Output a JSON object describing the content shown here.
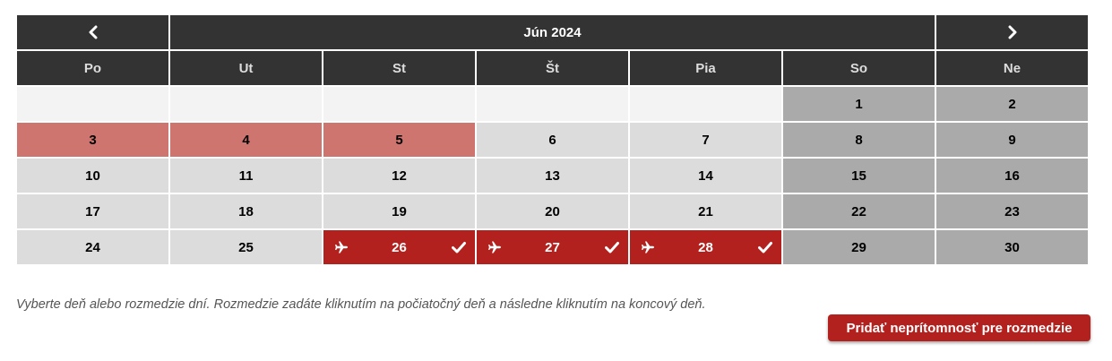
{
  "calendar": {
    "month_title": "Jún 2024",
    "prev_icon": "chevron-left-icon",
    "next_icon": "chevron-right-icon",
    "weekdays": [
      "Po",
      "Ut",
      "St",
      "Št",
      "Pia",
      "So",
      "Ne"
    ],
    "weeks": [
      [
        {
          "day": "",
          "state": "empty"
        },
        {
          "day": "",
          "state": "empty"
        },
        {
          "day": "",
          "state": "empty"
        },
        {
          "day": "",
          "state": "empty"
        },
        {
          "day": "",
          "state": "empty"
        },
        {
          "day": "1",
          "state": "weekend"
        },
        {
          "day": "2",
          "state": "weekend"
        }
      ],
      [
        {
          "day": "3",
          "state": "pending"
        },
        {
          "day": "4",
          "state": "pending"
        },
        {
          "day": "5",
          "state": "pending"
        },
        {
          "day": "6",
          "state": "workday"
        },
        {
          "day": "7",
          "state": "workday"
        },
        {
          "day": "8",
          "state": "weekend"
        },
        {
          "day": "9",
          "state": "weekend"
        }
      ],
      [
        {
          "day": "10",
          "state": "workday"
        },
        {
          "day": "11",
          "state": "workday"
        },
        {
          "day": "12",
          "state": "workday"
        },
        {
          "day": "13",
          "state": "workday"
        },
        {
          "day": "14",
          "state": "workday"
        },
        {
          "day": "15",
          "state": "weekend"
        },
        {
          "day": "16",
          "state": "weekend"
        }
      ],
      [
        {
          "day": "17",
          "state": "workday"
        },
        {
          "day": "18",
          "state": "workday"
        },
        {
          "day": "19",
          "state": "workday"
        },
        {
          "day": "20",
          "state": "workday"
        },
        {
          "day": "21",
          "state": "workday"
        },
        {
          "day": "22",
          "state": "weekend"
        },
        {
          "day": "23",
          "state": "weekend"
        }
      ],
      [
        {
          "day": "24",
          "state": "workday"
        },
        {
          "day": "25",
          "state": "workday"
        },
        {
          "day": "26",
          "state": "trip",
          "icons": [
            "plane-icon",
            "check-icon"
          ]
        },
        {
          "day": "27",
          "state": "trip",
          "icons": [
            "plane-icon",
            "check-icon"
          ]
        },
        {
          "day": "28",
          "state": "trip",
          "icons": [
            "plane-icon",
            "check-icon"
          ]
        },
        {
          "day": "29",
          "state": "weekend"
        },
        {
          "day": "30",
          "state": "weekend"
        }
      ]
    ]
  },
  "hint_text": "Vyberte deň alebo rozmedzie dní. Rozmedzie zadáte kliknutím na počiatočný deň a následne kliknutím na koncový deň.",
  "add_button_label": "Pridať neprítomnosť pre rozmedzie",
  "colors": {
    "header_bg": "#333333",
    "empty_bg": "#f4f3f4",
    "workday_bg": "#dcdcdc",
    "weekend_bg": "#aaaaaa",
    "pending_bg": "#cf7570",
    "trip_bg": "#b3211e",
    "accent": "#b3211e"
  }
}
